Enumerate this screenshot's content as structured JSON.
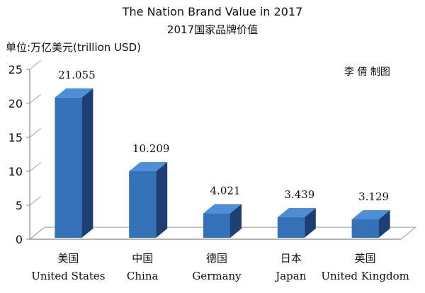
{
  "chart_data": {
    "type": "bar",
    "title": "The Nation Brand Value in 2017",
    "subtitle": "2017国家品牌价值",
    "ylabel": "单位:万亿美元(trillion USD)",
    "annotation": "李 倩  制图",
    "ylim": [
      0,
      25
    ],
    "yticks": [
      "0",
      "5",
      "10",
      "15",
      "20",
      "25"
    ],
    "categories": [
      {
        "zh": "美国",
        "en": "United States"
      },
      {
        "zh": "中国",
        "en": "China"
      },
      {
        "zh": "德国",
        "en": "Germany"
      },
      {
        "zh": "日本",
        "en": "Japan"
      },
      {
        "zh": "英国",
        "en": "United Kingdom"
      }
    ],
    "values": [
      21.055,
      10.209,
      4.021,
      3.439,
      3.129
    ],
    "value_labels": [
      "21.055",
      "10.209",
      "4.021",
      "3.439",
      "3.129"
    ],
    "grid": false,
    "style": "3d",
    "colors": {
      "front": "#3471b6",
      "side": "#1d3f73",
      "top": "#4d8fd6",
      "axis": "#888888",
      "floor": "#9a9a9a"
    }
  }
}
